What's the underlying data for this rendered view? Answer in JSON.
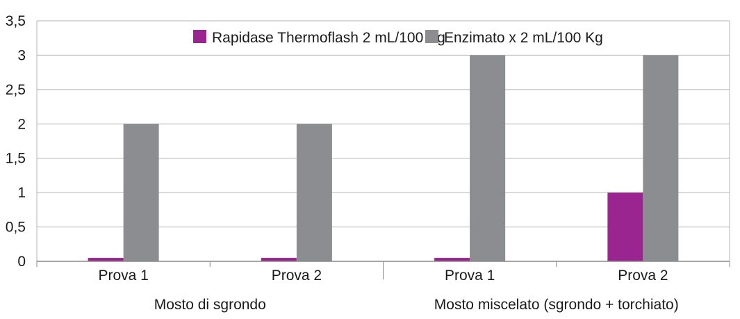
{
  "chart_data": {
    "type": "bar",
    "categories": [
      "Prova 1",
      "Prova 2",
      "Prova 1",
      "Prova 2"
    ],
    "groups": [
      {
        "label": "Mosto di sgrondo",
        "span": [
          0,
          1
        ]
      },
      {
        "label": "Mosto miscelato (sgrondo + torchiato)",
        "span": [
          2,
          3
        ]
      }
    ],
    "series": [
      {
        "name": "Rapidase Thermoflash 2 mL/100 Kg",
        "color": "#9b2590",
        "values": [
          0.05,
          0.05,
          0.05,
          1
        ]
      },
      {
        "name": "Enzimato x 2 mL/100 Kg",
        "color": "#8c8d90",
        "values": [
          2,
          2,
          3,
          3
        ]
      }
    ],
    "yticks": [
      "0",
      "0,5",
      "1",
      "1,5",
      "2",
      "2,5",
      "3",
      "3,5"
    ],
    "ytick_values": [
      0,
      0.5,
      1,
      1.5,
      2,
      2.5,
      3,
      3.5
    ],
    "ylim": [
      0,
      3.5
    ],
    "grid": true,
    "legend_position": "top-center",
    "title": "",
    "xlabel": "",
    "ylabel": ""
  }
}
